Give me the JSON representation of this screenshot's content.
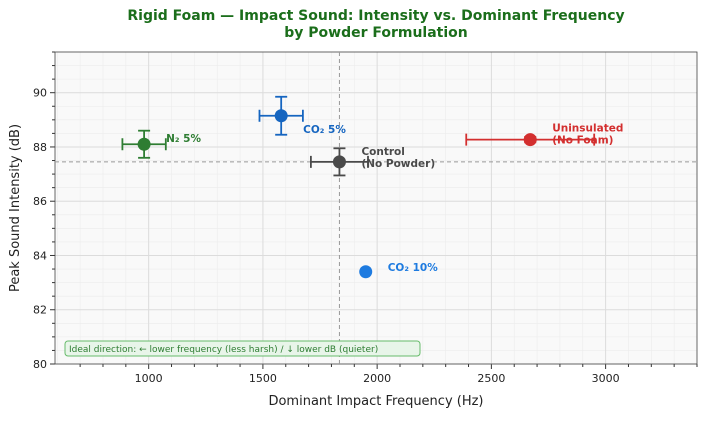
{
  "chart_data": {
    "type": "scatter",
    "title": "Rigid Foam — Impact Sound: Intensity vs. Dominant Frequency\nby Powder Formulation",
    "xlabel": "Dominant Impact Frequency (Hz)",
    "ylabel": "Peak Sound Intensity (dB)",
    "xlim": [
      590,
      3400
    ],
    "ylim": [
      80,
      91.5
    ],
    "xticks": [
      1000,
      1500,
      2000,
      2500,
      3000
    ],
    "yticks": [
      80,
      82,
      84,
      86,
      88,
      90
    ],
    "grid": true,
    "reference_lines": {
      "x": 1835,
      "y": 87.45
    },
    "points": [
      {
        "label": "N₂ 5%",
        "x": 980,
        "y": 88.1,
        "xerr": 95,
        "yerr": 0.5,
        "color": "#2e7d32"
      },
      {
        "label": "CO₂ 5%",
        "x": 1580,
        "y": 89.15,
        "xerr": 95,
        "yerr": 0.7,
        "color": "#1565c0"
      },
      {
        "label": "Control\n(No Powder)",
        "x": 1835,
        "y": 87.45,
        "xerr": 125,
        "yerr": 0.5,
        "color": "#4a4a4a"
      },
      {
        "label": "Uninsulated\n(No Foam)",
        "x": 2670,
        "y": 88.27,
        "xerr": 280,
        "yerr": 0.1,
        "color": "#d32f2f"
      },
      {
        "label": "CO₂ 10%",
        "x": 1950,
        "y": 83.4,
        "xerr": 0,
        "yerr": 0,
        "color": "#1e7be0"
      }
    ],
    "annotation": "Ideal direction: ← lower frequency (less harsh)  /  ↓ lower dB (quieter)"
  },
  "colors": {
    "title": "#1b6e1b",
    "annotation": "#2e7d32"
  }
}
